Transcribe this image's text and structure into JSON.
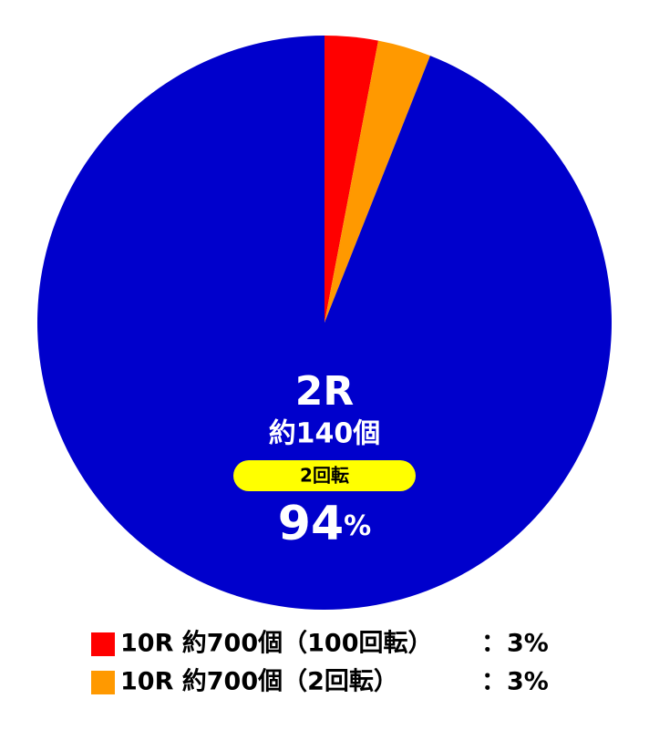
{
  "chart_data": {
    "type": "pie",
    "categories": [
      "10R 約700個（100回転）",
      "10R 約700個（2回転）",
      "2R"
    ],
    "values": [
      3,
      3,
      94
    ],
    "value_labels": [
      "3%",
      "3%",
      "94%"
    ],
    "colors": [
      "#ff0000",
      "#ff9900",
      "#0000cc"
    ],
    "label_inside": [
      false,
      false,
      true
    ],
    "inside_notes": [
      "約140個",
      "2回転"
    ],
    "legend_separator": "："
  }
}
